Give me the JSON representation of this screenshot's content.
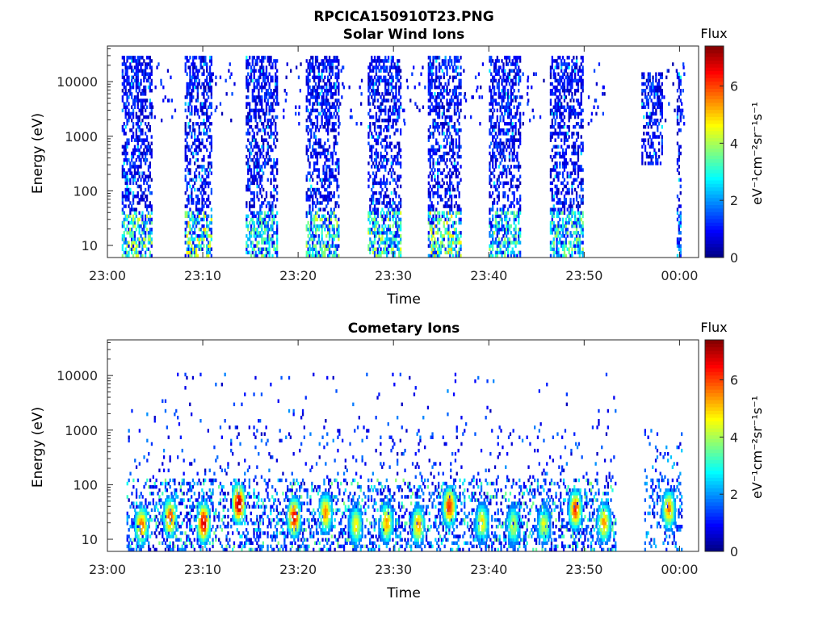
{
  "figure": {
    "title": "RPCICA150910T23.PNG"
  },
  "chart_data": [
    {
      "type": "heatmap",
      "title": "Solar Wind Ions",
      "xlabel": "Time",
      "ylabel": "Energy (eV)",
      "y_scale": "log",
      "y_ticks": [
        "10",
        "100",
        "1000",
        "10000"
      ],
      "y_tick_values": [
        10,
        100,
        1000,
        10000
      ],
      "ylim": [
        6,
        45000
      ],
      "x_ticks": [
        "23:00",
        "23:10",
        "23:20",
        "23:30",
        "23:40",
        "23:50",
        "00:00"
      ],
      "x_tick_minutes": [
        0,
        10,
        20,
        30,
        40,
        50,
        60
      ],
      "xlim_minutes": [
        0,
        62
      ],
      "colorbar": {
        "title": "Flux",
        "label": "eV⁻¹cm⁻²sr⁻¹s⁻¹",
        "ticks": [
          "0",
          "2",
          "4",
          "6"
        ],
        "range": [
          0,
          7.4
        ],
        "colormap": "jet"
      },
      "bursts": [
        {
          "start_min": 1.5,
          "end_min": 4.6,
          "e_min": 6,
          "e_max": 30000,
          "low_energy_peak_flux": 4.0
        },
        {
          "start_min": 8.1,
          "end_min": 10.9,
          "e_min": 6,
          "e_max": 30000,
          "low_energy_peak_flux": 4.5
        },
        {
          "start_min": 14.5,
          "end_min": 17.8,
          "e_min": 6,
          "e_max": 30000,
          "low_energy_peak_flux": 3.5
        },
        {
          "start_min": 20.8,
          "end_min": 24.2,
          "e_min": 6,
          "e_max": 30000,
          "low_energy_peak_flux": 3.8
        },
        {
          "start_min": 27.3,
          "end_min": 30.8,
          "e_min": 6,
          "e_max": 30000,
          "low_energy_peak_flux": 3.8
        },
        {
          "start_min": 33.6,
          "end_min": 37.0,
          "e_min": 6,
          "e_max": 30000,
          "low_energy_peak_flux": 4.5
        },
        {
          "start_min": 40.0,
          "end_min": 43.2,
          "e_min": 6,
          "e_max": 30000,
          "low_energy_peak_flux": 3.5
        },
        {
          "start_min": 46.4,
          "end_min": 49.9,
          "e_min": 6,
          "e_max": 30000,
          "low_energy_peak_flux": 3.5
        },
        {
          "start_min": 56.0,
          "end_min": 58.2,
          "e_min": 300,
          "e_max": 15000,
          "low_energy_peak_flux": 2.0
        },
        {
          "start_min": 59.7,
          "end_min": 60.1,
          "e_min": 6,
          "e_max": 15000,
          "low_energy_peak_flux": 2.0
        }
      ]
    },
    {
      "type": "heatmap",
      "title": "Cometary Ions",
      "xlabel": "Time",
      "ylabel": "Energy (eV)",
      "y_scale": "log",
      "y_ticks": [
        "10",
        "100",
        "1000",
        "10000"
      ],
      "y_tick_values": [
        10,
        100,
        1000,
        10000
      ],
      "ylim": [
        6,
        45000
      ],
      "x_ticks": [
        "23:00",
        "23:10",
        "23:20",
        "23:30",
        "23:40",
        "23:50",
        "00:00"
      ],
      "x_tick_minutes": [
        0,
        10,
        20,
        30,
        40,
        50,
        60
      ],
      "xlim_minutes": [
        0,
        62
      ],
      "colorbar": {
        "title": "Flux",
        "label": "eV⁻¹cm⁻²sr⁻¹s⁻¹",
        "ticks": [
          "0",
          "2",
          "4",
          "6"
        ],
        "range": [
          0,
          7.4
        ],
        "colormap": "jet"
      },
      "hotspots": [
        {
          "time_min": 3.5,
          "energy": 18,
          "flux": 5.5
        },
        {
          "time_min": 6.5,
          "energy": 25,
          "flux": 5.8
        },
        {
          "time_min": 10.0,
          "energy": 20,
          "flux": 6.6
        },
        {
          "time_min": 13.7,
          "energy": 45,
          "flux": 6.8
        },
        {
          "time_min": 19.5,
          "energy": 25,
          "flux": 6.2
        },
        {
          "time_min": 22.8,
          "energy": 30,
          "flux": 5.2
        },
        {
          "time_min": 26.0,
          "energy": 18,
          "flux": 4.5
        },
        {
          "time_min": 29.2,
          "energy": 20,
          "flux": 5.0
        },
        {
          "time_min": 32.5,
          "energy": 18,
          "flux": 5.0
        },
        {
          "time_min": 35.8,
          "energy": 40,
          "flux": 6.0
        },
        {
          "time_min": 39.2,
          "energy": 20,
          "flux": 4.5
        },
        {
          "time_min": 42.5,
          "energy": 18,
          "flux": 4.0
        },
        {
          "time_min": 45.7,
          "energy": 18,
          "flux": 4.2
        },
        {
          "time_min": 49.0,
          "energy": 35,
          "flux": 5.8
        },
        {
          "time_min": 52.0,
          "energy": 20,
          "flux": 5.0
        },
        {
          "time_min": 58.8,
          "energy": 35,
          "flux": 5.2
        }
      ]
    }
  ]
}
